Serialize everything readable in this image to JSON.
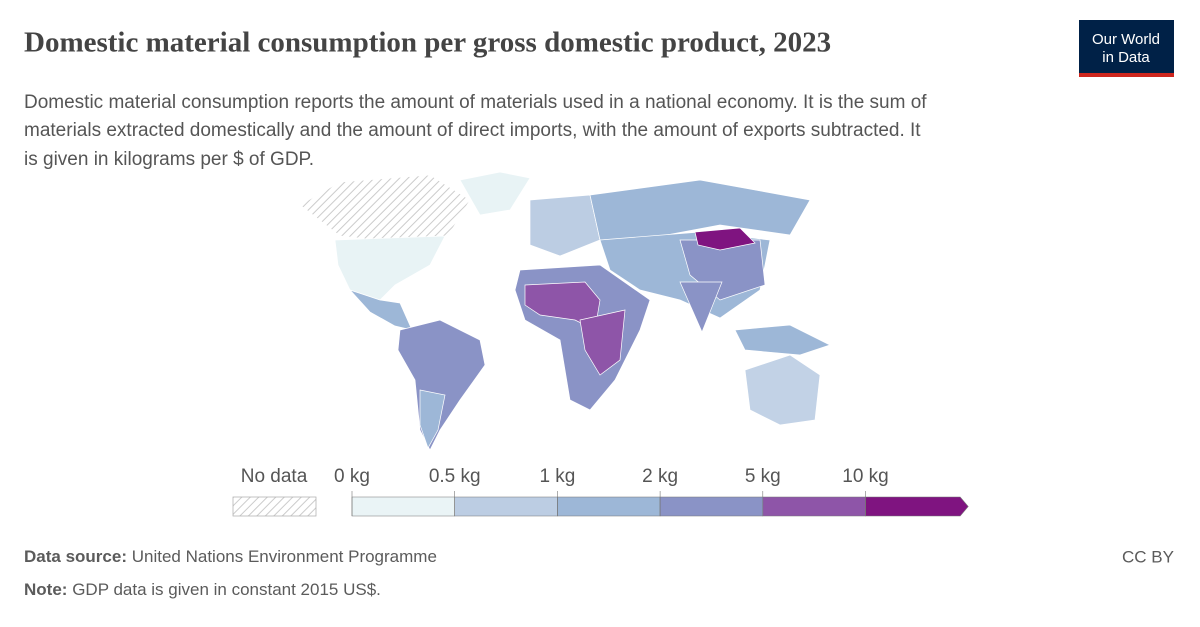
{
  "header": {
    "title": "Domestic material consumption per gross domestic product, 2023",
    "subtitle": [
      "Domestic material consumption reports the amount of materials used in a national economy. It is the sum of",
      "materials extracted domestically and the amount of direct imports, with the amount of exports subtracted. It",
      "is given in kilograms per $ of GDP."
    ],
    "logo": [
      "Our World",
      "in Data"
    ]
  },
  "legend": {
    "no_data_label": "No data",
    "ticks": [
      {
        "value": 0,
        "label": "0 kg"
      },
      {
        "value": 0.5,
        "label": "0.5 kg"
      },
      {
        "value": 1,
        "label": "1 kg"
      },
      {
        "value": 2,
        "label": "2 kg"
      },
      {
        "value": 5,
        "label": "5 kg"
      },
      {
        "value": 10,
        "label": "10 kg"
      }
    ],
    "colors": [
      "#eaf4f6",
      "#bccde3",
      "#9db7d7",
      "#8a93c6",
      "#8e55a8",
      "#7f1480"
    ]
  },
  "footer": {
    "source_label": "Data source:",
    "source": "United Nations Environment Programme",
    "note_label": "Note:",
    "note": "GDP data is given in constant 2015 US$.",
    "license": "CC BY"
  }
}
